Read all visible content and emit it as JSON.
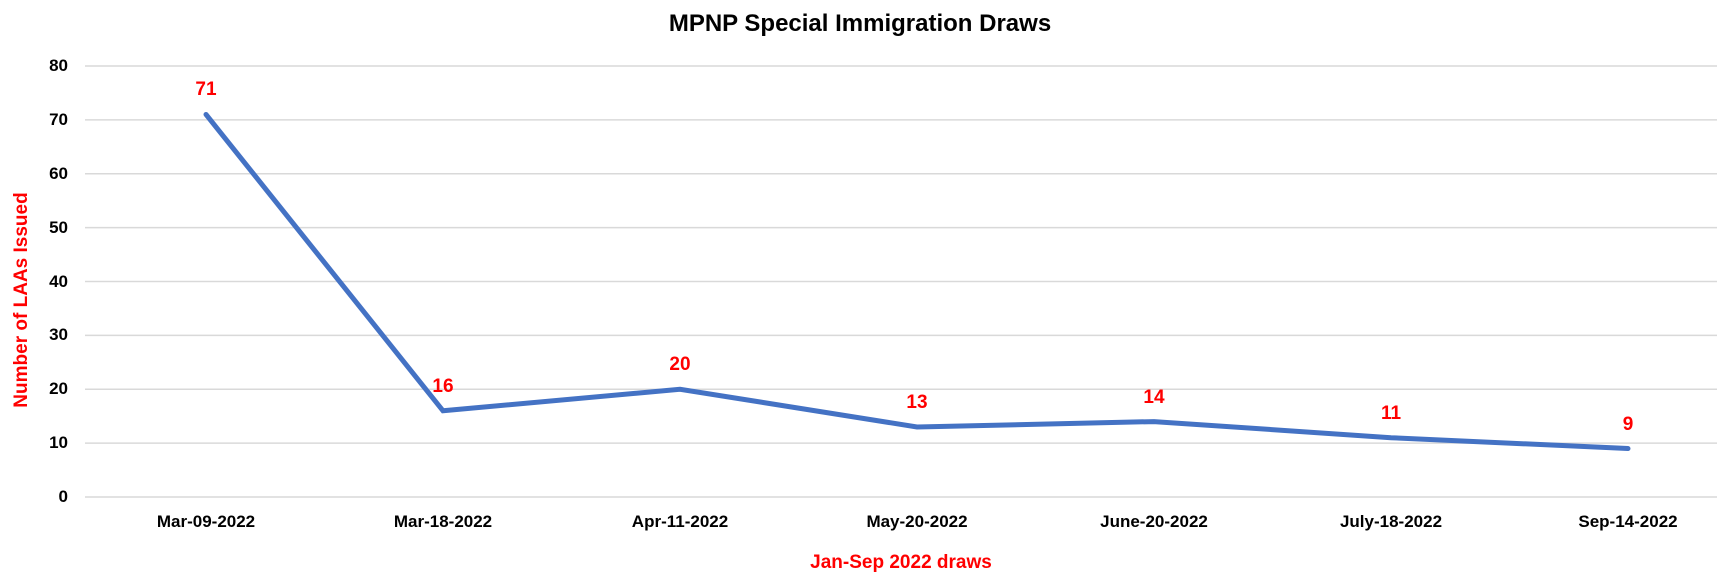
{
  "chart_data": {
    "type": "line",
    "title": "MPNP Special Immigration Draws",
    "xlabel": "Jan-Sep 2022 draws",
    "ylabel": "Number of LAAs Issued",
    "categories": [
      "Mar-09-2022",
      "Mar-18-2022",
      "Apr-11-2022",
      "May-20-2022",
      "June-20-2022",
      "July-18-2022",
      "Sep-14-2022"
    ],
    "series": [
      {
        "name": "Number of LAAs Issued",
        "values": [
          71,
          16,
          20,
          13,
          14,
          11,
          9
        ]
      }
    ],
    "data_labels": [
      "71",
      "16",
      "20",
      "13",
      "14",
      "11",
      "9"
    ],
    "y_ticks": [
      0,
      10,
      20,
      30,
      40,
      50,
      60,
      70,
      80
    ],
    "ylim": [
      0,
      80
    ],
    "grid": "horizontal-only",
    "legend": "none",
    "markers": "none",
    "colors": {
      "line": "#4472C4",
      "data_label": "#FF0000",
      "axis_title": "#FF0000",
      "tick_label": "#000000",
      "title": "#000000",
      "gridline": "#D9D9D9",
      "background": "#FFFFFF"
    }
  }
}
